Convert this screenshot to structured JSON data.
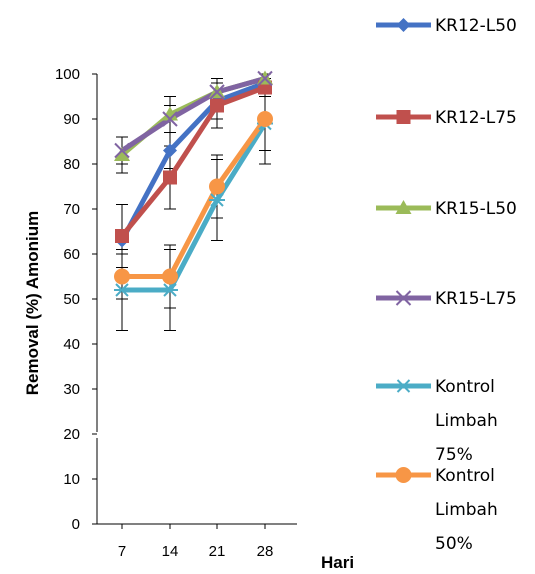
{
  "chart_data": {
    "type": "line",
    "x": [
      7,
      14,
      21,
      28
    ],
    "x_tick_labels": [
      "7",
      "14",
      "21",
      "28"
    ],
    "y_tick_labels": [
      "0",
      "10",
      "20",
      "30",
      "40",
      "50",
      "60",
      "70",
      "80",
      "90",
      "100"
    ],
    "xlabel": "Hari",
    "ylabel": "Removal (%) Amonium",
    "ylim": [
      0,
      100
    ],
    "y_axis_break": [
      10,
      20
    ],
    "grid": false,
    "legend_position": "right",
    "series": [
      {
        "name": "KR12-L50",
        "values": [
          63,
          83,
          94,
          98
        ],
        "errors": [
          8,
          4,
          4,
          2
        ],
        "color": "#4472C4",
        "marker": "diamond"
      },
      {
        "name": "KR12-L75",
        "values": [
          64,
          77,
          93,
          97
        ],
        "errors": [
          7,
          7,
          5,
          2
        ],
        "color": "#C0504D",
        "marker": "square"
      },
      {
        "name": "KR15-L50",
        "values": [
          82,
          91,
          96,
          99
        ],
        "errors": [
          4,
          4,
          3,
          1
        ],
        "color": "#9BBB59",
        "marker": "triangle"
      },
      {
        "name": "KR15-L75",
        "values": [
          83,
          90,
          96,
          99
        ],
        "errors": [
          3,
          3,
          3,
          1
        ],
        "color": "#8064A2",
        "marker": "x"
      },
      {
        "name": "Kontrol Limbah 75%",
        "name_lines": [
          "Kontrol",
          "Limbah",
          "75%"
        ],
        "values": [
          52,
          52,
          72,
          89
        ],
        "errors": [
          9,
          9,
          9,
          9
        ],
        "color": "#4BACC6",
        "marker": "asterisk"
      },
      {
        "name": "Kontrol Limbah 50%",
        "name_lines": [
          "Kontrol",
          "Limbah",
          "50%"
        ],
        "values": [
          55,
          55,
          75,
          90
        ],
        "errors": [
          5,
          7,
          7,
          7
        ],
        "color": "#F79646",
        "marker": "circle"
      }
    ]
  }
}
